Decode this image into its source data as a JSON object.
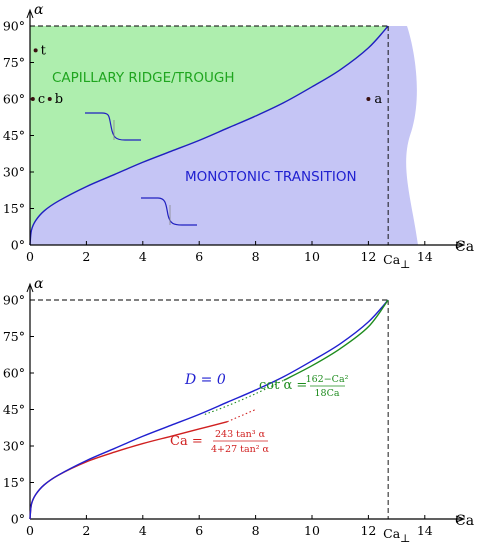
{
  "chart_data": [
    {
      "type": "area",
      "title": "",
      "xlabel": "Ca",
      "ylabel": "α",
      "xlim": [
        0,
        14.5
      ],
      "ylim": [
        0,
        90
      ],
      "x_ticks": [
        "0",
        "2",
        "4",
        "6",
        "8",
        "10",
        "12",
        "14"
      ],
      "y_ticks": [
        "0°",
        "15°",
        "30°",
        "45°",
        "60°",
        "75°",
        "90°"
      ],
      "special_tick": {
        "label": "Ca",
        "subscript": "⊥",
        "value": 12.7
      },
      "regions": [
        {
          "name": "CAPILLARY RIDGE/TROUGH",
          "color": "#aeeeae"
        },
        {
          "name": "MONOTONIC TRANSITION",
          "color": "#c5c5f5"
        }
      ],
      "boundary_series": {
        "color": "#2020c0",
        "x": [
          0,
          0.05,
          0.2,
          0.5,
          1,
          2,
          3,
          4,
          5,
          6,
          7,
          8,
          9,
          10,
          11,
          12,
          12.7
        ],
        "y": [
          0,
          6,
          10,
          14,
          18,
          24,
          29,
          34,
          38.5,
          43,
          48,
          53,
          58.5,
          65,
          72,
          81,
          90
        ]
      },
      "points": [
        {
          "label": "a",
          "x": 12,
          "y": 60
        },
        {
          "label": "b",
          "x": 0.7,
          "y": 60
        },
        {
          "label": "c",
          "x": 0.1,
          "y": 60
        },
        {
          "label": "t",
          "x": 0.2,
          "y": 80
        }
      ],
      "colors": {
        "green_fill": "#aeeeae",
        "blue_fill": "#c5c5f5",
        "curve": "#2020c0"
      }
    },
    {
      "type": "line",
      "title": "",
      "xlabel": "Ca",
      "ylabel": "α",
      "xlim": [
        0,
        14.5
      ],
      "ylim": [
        0,
        90
      ],
      "x_ticks": [
        "0",
        "2",
        "4",
        "6",
        "8",
        "10",
        "12",
        "14"
      ],
      "y_ticks": [
        "0°",
        "15°",
        "30°",
        "45°",
        "60°",
        "75°",
        "90°"
      ],
      "special_tick": {
        "label": "Ca",
        "subscript": "⊥",
        "value": 12.7
      },
      "series": [
        {
          "name": "D = 0",
          "color": "#2020d0",
          "x": [
            0,
            0.05,
            0.2,
            0.5,
            1,
            2,
            3,
            4,
            5,
            6,
            7,
            8,
            9,
            10,
            11,
            12,
            12.7
          ],
          "y": [
            0,
            6,
            10,
            14,
            18,
            24,
            29,
            34,
            38.5,
            43,
            48,
            53,
            58.5,
            65,
            72,
            81,
            90
          ]
        },
        {
          "name": "cot α = (162−Ca²)/(18Ca)",
          "color": "#1e8c1e",
          "x": [
            6.2,
            7,
            8,
            9,
            10,
            11,
            12,
            12.7
          ],
          "y": [
            43,
            46.5,
            51.5,
            57,
            63,
            70,
            79,
            90
          ]
        },
        {
          "name": "Ca = 243 tan³α / (4+27 tan²α)",
          "color": "#d02020",
          "x": [
            0,
            0.05,
            0.2,
            0.5,
            1,
            2,
            3,
            4,
            5,
            6,
            7,
            8
          ],
          "y": [
            0,
            6,
            10,
            14,
            18,
            23.5,
            27.5,
            31,
            34,
            37,
            40,
            45
          ]
        }
      ],
      "annotations": {
        "d_label": "D = 0",
        "cot_label_left": "cot α = ",
        "cot_numerator": "162−Ca²",
        "cot_denominator": "18Ca",
        "ca_label_left": "Ca = ",
        "ca_numerator": "243 tan³ α",
        "ca_denominator": "4+27 tan² α"
      }
    }
  ]
}
